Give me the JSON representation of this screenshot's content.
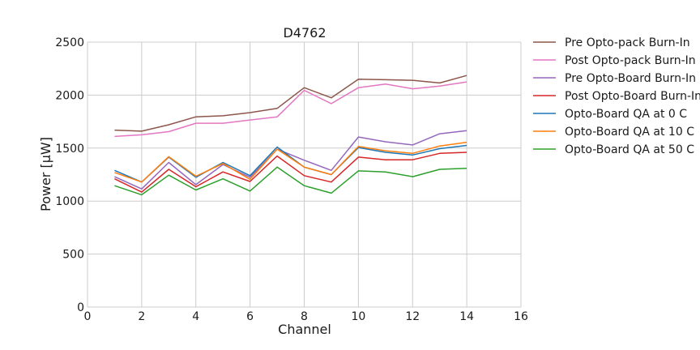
{
  "chart_data": {
    "type": "line",
    "title": "D4762",
    "xlabel": "Channel",
    "ylabel": "Power [μW]",
    "xlim": [
      0,
      16
    ],
    "ylim": [
      0,
      2500
    ],
    "xticks": [
      0,
      2,
      4,
      6,
      8,
      10,
      12,
      14,
      16
    ],
    "yticks": [
      0,
      500,
      1000,
      1500,
      2000,
      2500
    ],
    "grid": true,
    "legend_position": "outside-right",
    "x": [
      1,
      2,
      3,
      4,
      5,
      6,
      7,
      8,
      9,
      10,
      11,
      12,
      13,
      14
    ],
    "series": [
      {
        "name": "Pre Opto-pack Burn-In",
        "color": "#8c564b",
        "values": [
          1670,
          1660,
          1720,
          1795,
          1805,
          1835,
          1875,
          2070,
          1975,
          2150,
          2145,
          2140,
          2115,
          2185
        ]
      },
      {
        "name": "Post Opto-pack Burn-In",
        "color": "#e377c2",
        "values": [
          1610,
          1625,
          1655,
          1735,
          1735,
          1765,
          1795,
          2045,
          1920,
          2070,
          2105,
          2060,
          2085,
          2125
        ]
      },
      {
        "name": "Pre Opto-Board Burn-In",
        "color": "#9467bd",
        "values": [
          1230,
          1115,
          1365,
          1155,
          1345,
          1225,
          1490,
          1385,
          1290,
          1605,
          1560,
          1530,
          1635,
          1665
        ]
      },
      {
        "name": "Post Opto-Board Burn-In",
        "color": "#d62728",
        "values": [
          1210,
          1085,
          1300,
          1135,
          1275,
          1185,
          1425,
          1240,
          1180,
          1415,
          1390,
          1390,
          1450,
          1460
        ]
      },
      {
        "name": "Opto-Board QA at 0 C",
        "color": "#1f77b4",
        "values": [
          1290,
          1180,
          1415,
          1225,
          1365,
          1240,
          1510,
          1320,
          1250,
          1505,
          1460,
          1435,
          1495,
          1525
        ]
      },
      {
        "name": "Opto-Board QA at 10 C",
        "color": "#ff7f0e",
        "values": [
          1270,
          1180,
          1420,
          1235,
          1355,
          1205,
          1490,
          1320,
          1250,
          1515,
          1475,
          1450,
          1520,
          1555
        ]
      },
      {
        "name": "Opto-Board QA at 50 C",
        "color": "#2ca02c",
        "values": [
          1145,
          1060,
          1245,
          1105,
          1210,
          1095,
          1320,
          1145,
          1075,
          1285,
          1275,
          1230,
          1300,
          1310
        ]
      }
    ]
  }
}
